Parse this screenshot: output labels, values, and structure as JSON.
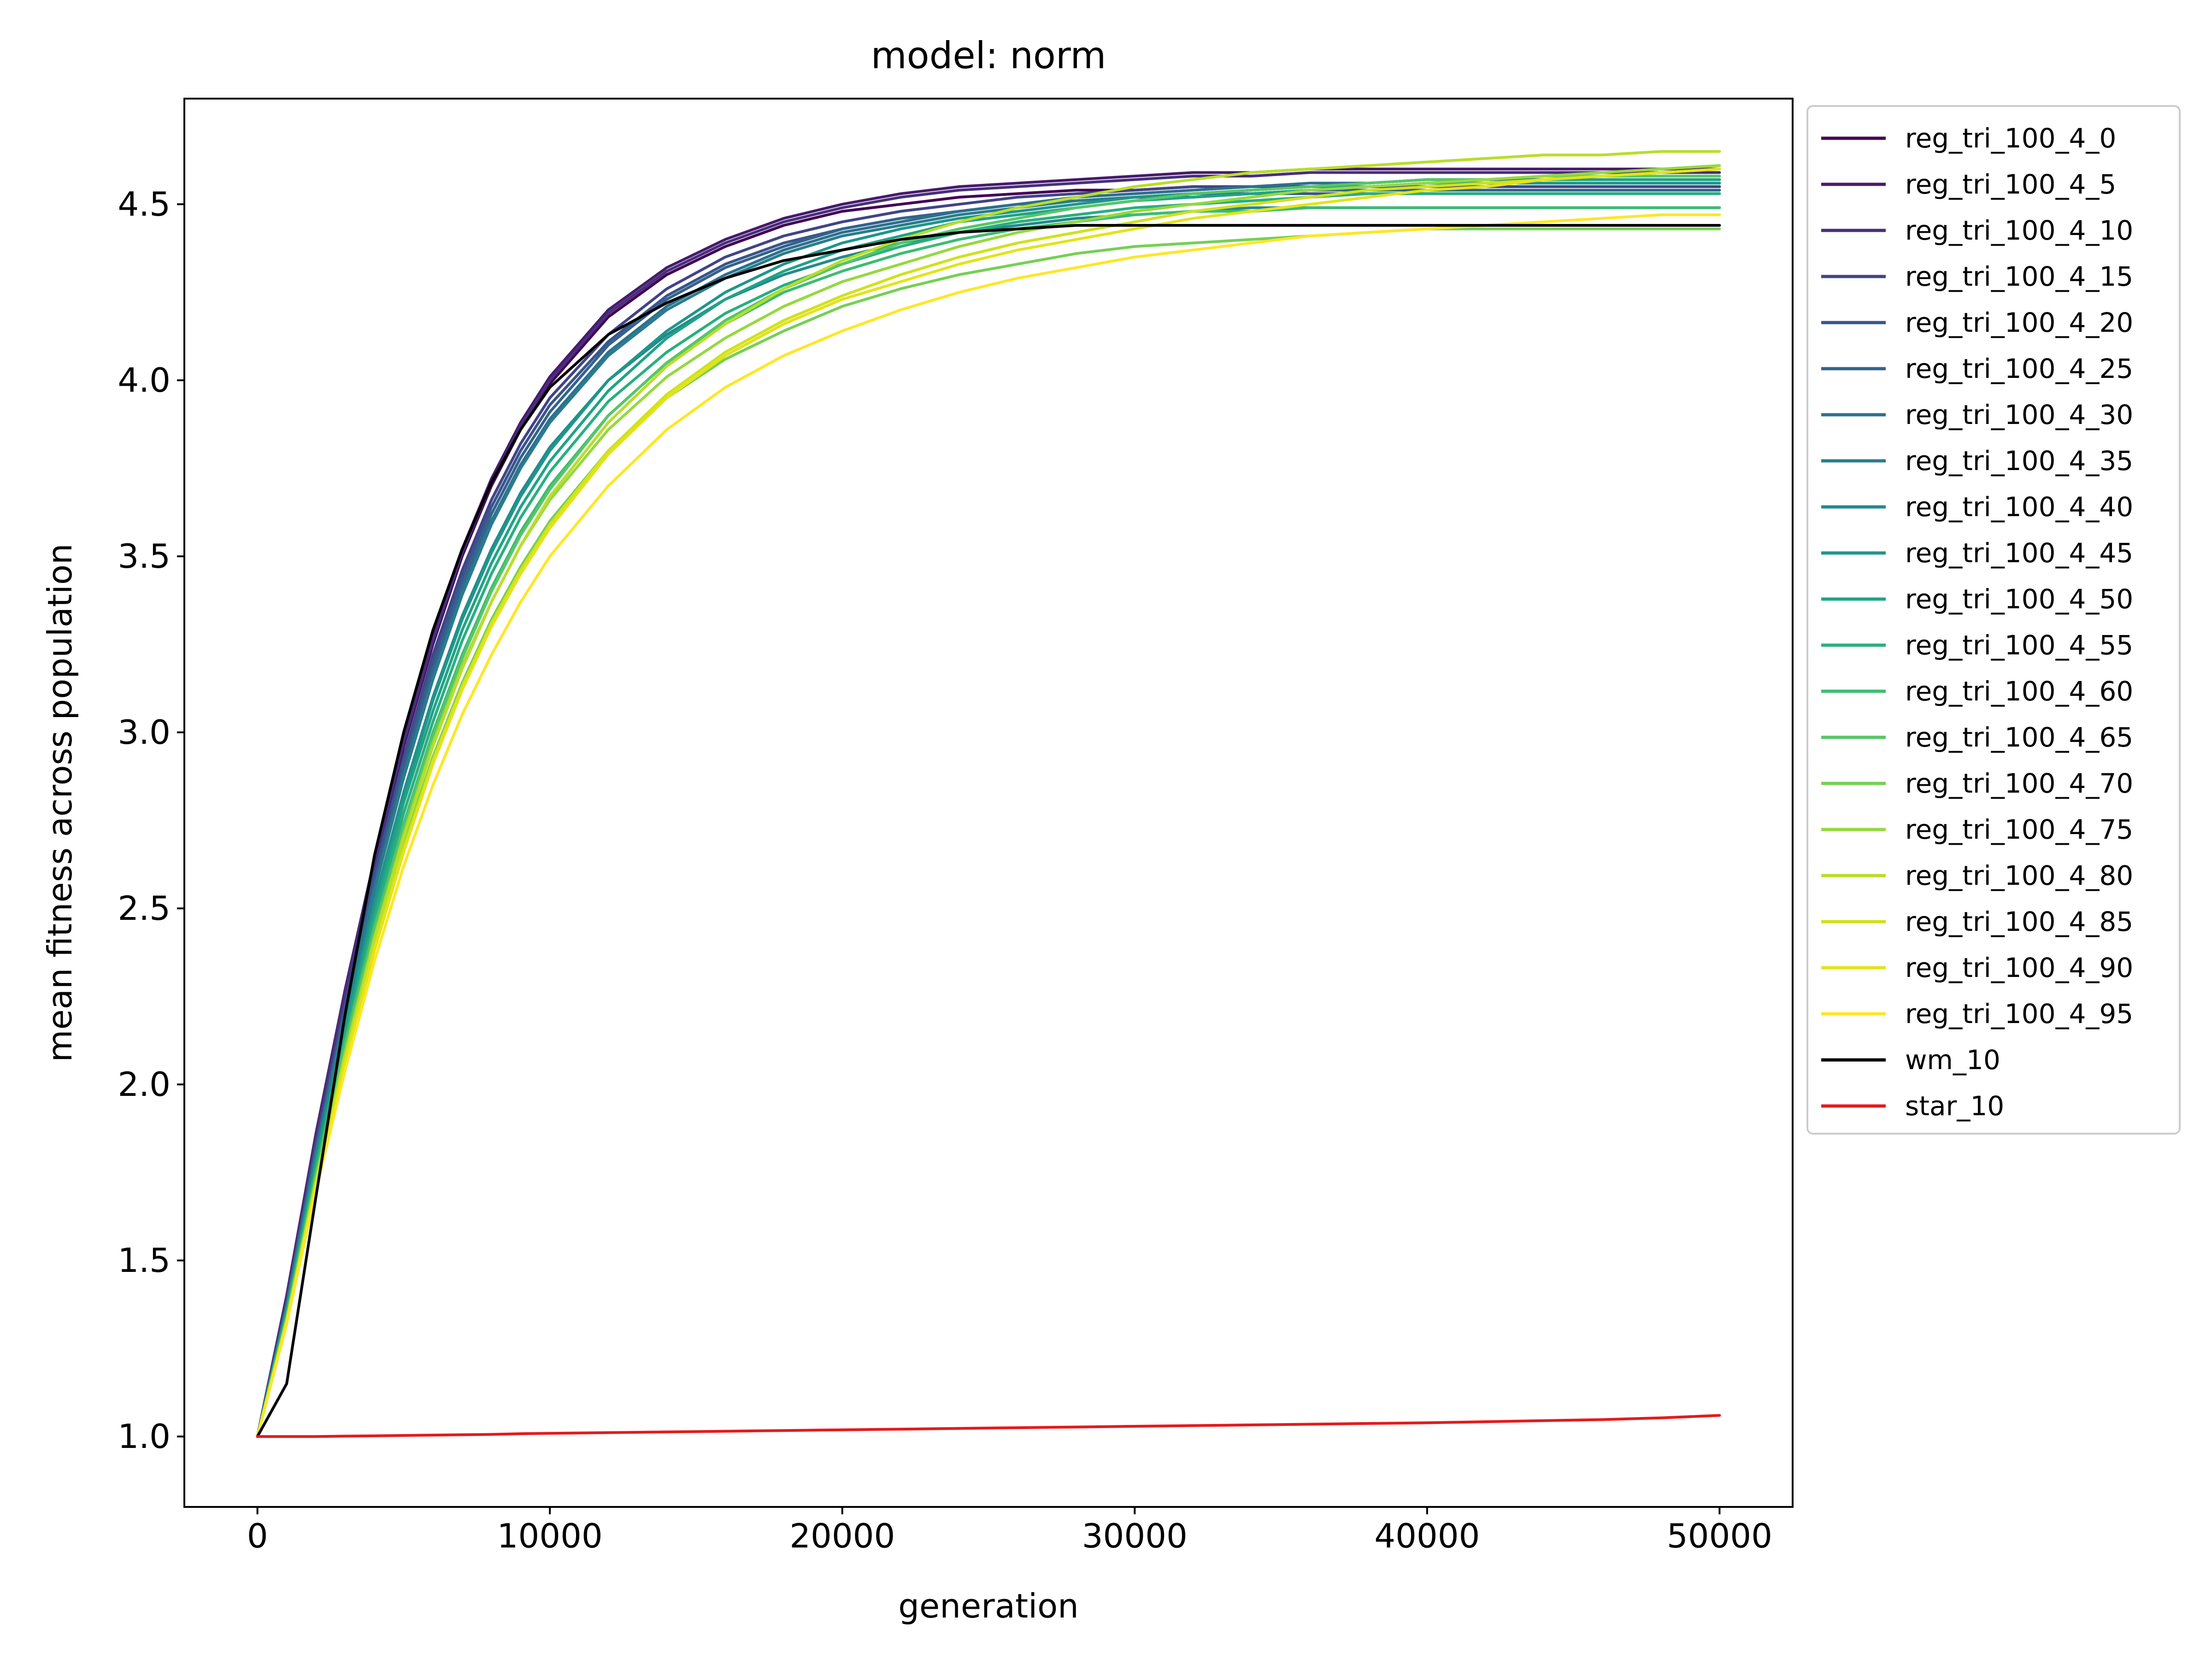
{
  "chart_data": {
    "type": "line",
    "title": "model: norm",
    "xlabel": "generation",
    "ylabel": "mean fitness across population",
    "xlim": [
      -2500,
      52500
    ],
    "ylim": [
      0.8,
      4.8
    ],
    "xticks": [
      0,
      10000,
      20000,
      30000,
      40000,
      50000
    ],
    "xtick_labels": [
      "0",
      "10000",
      "20000",
      "30000",
      "40000",
      "50000"
    ],
    "yticks": [
      1.0,
      1.5,
      2.0,
      2.5,
      3.0,
      3.5,
      4.0,
      4.5
    ],
    "ytick_labels": [
      "1.0",
      "1.5",
      "2.0",
      "2.5",
      "3.0",
      "3.5",
      "4.0",
      "4.5"
    ],
    "grid": false,
    "legend_position": "outside-right-top",
    "x": [
      0,
      1000,
      2000,
      3000,
      4000,
      5000,
      6000,
      7000,
      8000,
      9000,
      10000,
      12000,
      14000,
      16000,
      18000,
      20000,
      22000,
      24000,
      26000,
      28000,
      30000,
      32000,
      34000,
      36000,
      38000,
      40000,
      42000,
      44000,
      46000,
      48000,
      50000
    ],
    "series": [
      {
        "name": "reg_tri_100_4_0",
        "color": "#440154",
        "values": [
          1.0,
          1.4,
          1.85,
          2.25,
          2.62,
          2.96,
          3.25,
          3.5,
          3.7,
          3.86,
          3.99,
          4.18,
          4.3,
          4.38,
          4.44,
          4.48,
          4.5,
          4.52,
          4.53,
          4.54,
          4.54,
          4.55,
          4.55,
          4.55,
          4.55,
          4.55,
          4.55,
          4.55,
          4.55,
          4.55,
          4.55
        ]
      },
      {
        "name": "reg_tri_100_4_5",
        "color": "#481a6c",
        "values": [
          1.0,
          1.4,
          1.86,
          2.27,
          2.64,
          2.98,
          3.27,
          3.52,
          3.72,
          3.88,
          4.01,
          4.2,
          4.32,
          4.4,
          4.46,
          4.5,
          4.53,
          4.55,
          4.56,
          4.57,
          4.58,
          4.59,
          4.59,
          4.6,
          4.6,
          4.6,
          4.6,
          4.6,
          4.6,
          4.6,
          4.6
        ]
      },
      {
        "name": "reg_tri_100_4_10",
        "color": "#472f7d",
        "values": [
          1.0,
          1.39,
          1.85,
          2.26,
          2.63,
          2.97,
          3.26,
          3.51,
          3.71,
          3.87,
          4.0,
          4.19,
          4.31,
          4.39,
          4.45,
          4.49,
          4.52,
          4.54,
          4.55,
          4.56,
          4.57,
          4.58,
          4.58,
          4.59,
          4.59,
          4.59,
          4.59,
          4.59,
          4.59,
          4.59,
          4.59
        ]
      },
      {
        "name": "reg_tri_100_4_15",
        "color": "#414487",
        "values": [
          1.0,
          1.38,
          1.83,
          2.23,
          2.6,
          2.93,
          3.22,
          3.46,
          3.66,
          3.82,
          3.95,
          4.13,
          4.26,
          4.35,
          4.41,
          4.45,
          4.48,
          4.5,
          4.52,
          4.53,
          4.54,
          4.55,
          4.55,
          4.55,
          4.55,
          4.55,
          4.55,
          4.55,
          4.55,
          4.55,
          4.55
        ]
      },
      {
        "name": "reg_tri_100_4_20",
        "color": "#3a548c",
        "values": [
          1.0,
          1.38,
          1.82,
          2.22,
          2.59,
          2.92,
          3.2,
          3.44,
          3.64,
          3.8,
          3.93,
          4.11,
          4.24,
          4.33,
          4.39,
          4.43,
          4.46,
          4.48,
          4.5,
          4.51,
          4.52,
          4.52,
          4.53,
          4.53,
          4.53,
          4.53,
          4.53,
          4.53,
          4.53,
          4.53,
          4.53
        ]
      },
      {
        "name": "reg_tri_100_4_25",
        "color": "#33638d",
        "values": [
          1.0,
          1.37,
          1.81,
          2.21,
          2.57,
          2.9,
          3.18,
          3.42,
          3.62,
          3.78,
          3.91,
          4.1,
          4.23,
          4.32,
          4.38,
          4.43,
          4.46,
          4.48,
          4.5,
          4.51,
          4.52,
          4.53,
          4.53,
          4.54,
          4.54,
          4.54,
          4.54,
          4.54,
          4.54,
          4.54,
          4.54
        ]
      },
      {
        "name": "reg_tri_100_4_30",
        "color": "#2d708e",
        "values": [
          1.0,
          1.37,
          1.81,
          2.2,
          2.56,
          2.88,
          3.16,
          3.4,
          3.6,
          3.76,
          3.89,
          4.08,
          4.21,
          4.3,
          4.37,
          4.42,
          4.45,
          4.48,
          4.5,
          4.52,
          4.53,
          4.54,
          4.55,
          4.56,
          4.56,
          4.57,
          4.57,
          4.57,
          4.57,
          4.57,
          4.57
        ]
      },
      {
        "name": "reg_tri_100_4_35",
        "color": "#287d8e",
        "values": [
          1.0,
          1.36,
          1.8,
          2.19,
          2.55,
          2.87,
          3.15,
          3.39,
          3.59,
          3.75,
          3.88,
          4.07,
          4.2,
          4.29,
          4.36,
          4.41,
          4.44,
          4.47,
          4.49,
          4.51,
          4.52,
          4.53,
          4.54,
          4.55,
          4.55,
          4.56,
          4.56,
          4.56,
          4.56,
          4.56,
          4.56
        ]
      },
      {
        "name": "reg_tri_100_4_40",
        "color": "#238a8d",
        "values": [
          1.0,
          1.36,
          1.79,
          2.17,
          2.52,
          2.83,
          3.1,
          3.33,
          3.52,
          3.68,
          3.81,
          4.0,
          4.13,
          4.23,
          4.3,
          4.35,
          4.39,
          4.42,
          4.44,
          4.46,
          4.47,
          4.48,
          4.49,
          4.49,
          4.49,
          4.49,
          4.49,
          4.49,
          4.49,
          4.49,
          4.49
        ]
      },
      {
        "name": "reg_tri_100_4_45",
        "color": "#1f968b",
        "values": [
          1.0,
          1.36,
          1.78,
          2.16,
          2.51,
          2.82,
          3.09,
          3.32,
          3.51,
          3.67,
          3.8,
          4.0,
          4.14,
          4.25,
          4.33,
          4.39,
          4.43,
          4.46,
          4.48,
          4.5,
          4.52,
          4.53,
          4.54,
          4.55,
          4.55,
          4.56,
          4.56,
          4.56,
          4.56,
          4.56,
          4.56
        ]
      },
      {
        "name": "reg_tri_100_4_50",
        "color": "#20a386",
        "values": [
          1.0,
          1.35,
          1.77,
          2.15,
          2.49,
          2.8,
          3.06,
          3.29,
          3.48,
          3.64,
          3.77,
          3.97,
          4.12,
          4.23,
          4.31,
          4.37,
          4.41,
          4.45,
          4.47,
          4.49,
          4.51,
          4.52,
          4.53,
          4.54,
          4.55,
          4.56,
          4.56,
          4.57,
          4.57,
          4.57,
          4.57
        ]
      },
      {
        "name": "reg_tri_100_4_55",
        "color": "#29af7f",
        "values": [
          1.0,
          1.35,
          1.76,
          2.13,
          2.47,
          2.77,
          3.03,
          3.26,
          3.45,
          3.61,
          3.74,
          3.94,
          4.08,
          4.19,
          4.27,
          4.33,
          4.38,
          4.42,
          4.45,
          4.47,
          4.49,
          4.5,
          4.51,
          4.52,
          4.53,
          4.53,
          4.53,
          4.53,
          4.53,
          4.53,
          4.53
        ]
      },
      {
        "name": "reg_tri_100_4_60",
        "color": "#3dbc74",
        "values": [
          1.0,
          1.34,
          1.75,
          2.12,
          2.45,
          2.74,
          3.0,
          3.22,
          3.41,
          3.57,
          3.7,
          3.9,
          4.05,
          4.16,
          4.25,
          4.31,
          4.36,
          4.4,
          4.43,
          4.45,
          4.47,
          4.48,
          4.48,
          4.49,
          4.49,
          4.49,
          4.49,
          4.49,
          4.49,
          4.49,
          4.49
        ]
      },
      {
        "name": "reg_tri_100_4_65",
        "color": "#56c667",
        "values": [
          1.0,
          1.34,
          1.74,
          2.11,
          2.44,
          2.73,
          2.99,
          3.21,
          3.4,
          3.56,
          3.69,
          3.9,
          4.05,
          4.17,
          4.26,
          4.33,
          4.39,
          4.43,
          4.46,
          4.49,
          4.51,
          4.53,
          4.54,
          4.55,
          4.56,
          4.57,
          4.57,
          4.58,
          4.58,
          4.58,
          4.58
        ]
      },
      {
        "name": "reg_tri_100_4_70",
        "color": "#75d054",
        "values": [
          1.0,
          1.33,
          1.72,
          2.08,
          2.4,
          2.68,
          2.93,
          3.14,
          3.32,
          3.47,
          3.6,
          3.8,
          3.95,
          4.06,
          4.14,
          4.21,
          4.26,
          4.3,
          4.33,
          4.36,
          4.38,
          4.39,
          4.4,
          4.41,
          4.42,
          4.43,
          4.43,
          4.43,
          4.43,
          4.43,
          4.43
        ]
      },
      {
        "name": "reg_tri_100_4_75",
        "color": "#95d840",
        "values": [
          1.0,
          1.33,
          1.73,
          2.09,
          2.42,
          2.71,
          2.97,
          3.19,
          3.37,
          3.53,
          3.66,
          3.86,
          4.01,
          4.12,
          4.21,
          4.28,
          4.33,
          4.38,
          4.42,
          4.45,
          4.48,
          4.5,
          4.52,
          4.54,
          4.55,
          4.56,
          4.57,
          4.58,
          4.59,
          4.6,
          4.61
        ]
      },
      {
        "name": "reg_tri_100_4_80",
        "color": "#b8de29",
        "values": [
          1.0,
          1.33,
          1.72,
          2.08,
          2.41,
          2.7,
          2.96,
          3.18,
          3.37,
          3.53,
          3.67,
          3.88,
          4.04,
          4.16,
          4.26,
          4.34,
          4.4,
          4.45,
          4.49,
          4.52,
          4.55,
          4.57,
          4.59,
          4.6,
          4.61,
          4.62,
          4.63,
          4.64,
          4.64,
          4.65,
          4.65
        ]
      },
      {
        "name": "reg_tri_100_4_85",
        "color": "#d0e11c",
        "values": [
          1.0,
          1.33,
          1.72,
          2.07,
          2.39,
          2.67,
          2.92,
          3.13,
          3.31,
          3.46,
          3.59,
          3.8,
          3.96,
          4.08,
          4.17,
          4.24,
          4.3,
          4.35,
          4.39,
          4.42,
          4.45,
          4.48,
          4.5,
          4.52,
          4.54,
          4.55,
          4.56,
          4.57,
          4.58,
          4.59,
          4.6
        ]
      },
      {
        "name": "reg_tri_100_4_90",
        "color": "#e2e418",
        "values": [
          1.0,
          1.32,
          1.71,
          2.06,
          2.38,
          2.66,
          2.91,
          3.12,
          3.3,
          3.45,
          3.58,
          3.79,
          3.95,
          4.07,
          4.16,
          4.23,
          4.28,
          4.33,
          4.37,
          4.4,
          4.43,
          4.46,
          4.48,
          4.5,
          4.52,
          4.54,
          4.55,
          4.57,
          4.58,
          4.59,
          4.6
        ]
      },
      {
        "name": "reg_tri_100_4_95",
        "color": "#fde725",
        "values": [
          1.0,
          1.32,
          1.7,
          2.04,
          2.35,
          2.62,
          2.85,
          3.05,
          3.22,
          3.37,
          3.5,
          3.7,
          3.86,
          3.98,
          4.07,
          4.14,
          4.2,
          4.25,
          4.29,
          4.32,
          4.35,
          4.37,
          4.39,
          4.41,
          4.42,
          4.43,
          4.44,
          4.45,
          4.46,
          4.47,
          4.47
        ]
      },
      {
        "name": "wm_10",
        "color": "#000000",
        "values": [
          1.0,
          1.15,
          1.68,
          2.2,
          2.65,
          3.0,
          3.29,
          3.52,
          3.71,
          3.86,
          3.98,
          4.13,
          4.22,
          4.29,
          4.34,
          4.37,
          4.4,
          4.42,
          4.43,
          4.44,
          4.44,
          4.44,
          4.44,
          4.44,
          4.44,
          4.44,
          4.44,
          4.44,
          4.44,
          4.44,
          4.44
        ]
      },
      {
        "name": "star_10",
        "color": "#e41a1c",
        "values": [
          1.0,
          1.0,
          1.0,
          1.001,
          1.002,
          1.003,
          1.004,
          1.005,
          1.006,
          1.008,
          1.009,
          1.011,
          1.013,
          1.015,
          1.017,
          1.019,
          1.021,
          1.023,
          1.025,
          1.027,
          1.029,
          1.031,
          1.033,
          1.035,
          1.037,
          1.039,
          1.042,
          1.045,
          1.048,
          1.053,
          1.06
        ]
      }
    ]
  }
}
